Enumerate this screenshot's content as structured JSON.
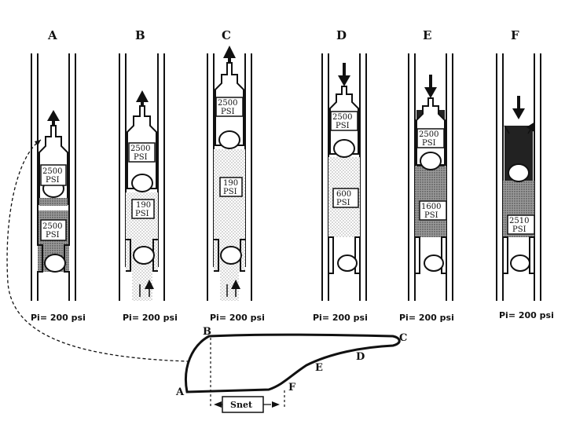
{
  "stages": [
    {
      "label": "A",
      "upper_psi_1": "2500",
      "upper_psi_2": "PSI",
      "lower_psi_1": "2500",
      "lower_psi_2": "PSI",
      "pi": "Pi= 200 psi"
    },
    {
      "label": "B",
      "upper_psi_1": "2500",
      "upper_psi_2": "PSI",
      "lower_psi_1": "190",
      "lower_psi_2": "PSI",
      "pi": "Pi= 200 psi"
    },
    {
      "label": "C",
      "upper_psi_1": "2500",
      "upper_psi_2": "PSI",
      "lower_psi_1": "190",
      "lower_psi_2": "PSI",
      "pi": "Pi= 200 psi"
    },
    {
      "label": "D",
      "upper_psi_1": "2500",
      "upper_psi_2": "PSI",
      "lower_psi_1": "600",
      "lower_psi_2": "PSI",
      "pi": "Pi= 200 psi"
    },
    {
      "label": "E",
      "upper_psi_1": "2500",
      "upper_psi_2": "PSI",
      "lower_psi_1": "1600",
      "lower_psi_2": "PSI",
      "pi": "Pi= 200 psi"
    },
    {
      "label": "F",
      "upper_psi_1": "",
      "upper_psi_2": "",
      "lower_psi_1": "2510",
      "lower_psi_2": "PSI",
      "pi": "Pi= 200 psi"
    }
  ],
  "curve": {
    "point_a": "A",
    "point_b": "B",
    "point_c": "C",
    "point_d": "D",
    "point_e": "E",
    "point_f": "F",
    "snet_label": "Snet"
  },
  "colors": {
    "ink": "#111111",
    "fill_light": "#e6e6e6",
    "fill_dark": "#a9a9a9",
    "paper": "#ffffff"
  }
}
